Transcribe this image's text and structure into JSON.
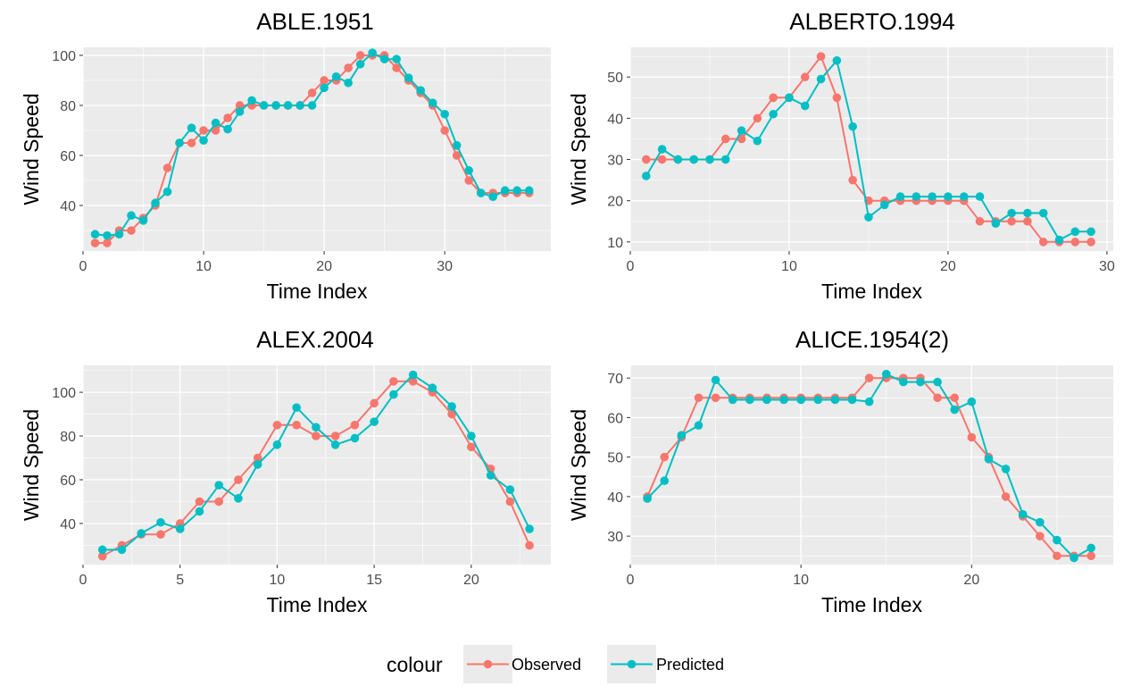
{
  "colors": {
    "observed": "#F8766D",
    "predicted": "#00BFC4",
    "panel": "#EBEBEB",
    "grid": "#FFFFFF",
    "tick_text": "#4D4D4D"
  },
  "legend": {
    "title": "colour",
    "items": [
      {
        "label": "Observed",
        "color": "#F8766D"
      },
      {
        "label": "Predicted",
        "color": "#00BFC4"
      }
    ],
    "placement": "bottom"
  },
  "chart_data": [
    {
      "type": "line",
      "title": "ABLE.1951",
      "xlabel": "Time Index",
      "ylabel": "Wind Speed",
      "xlim": [
        0,
        38.8
      ],
      "ylim": [
        21.8,
        103.2
      ],
      "xticks": [
        0,
        10,
        20,
        30
      ],
      "yticks": [
        40,
        60,
        80,
        100
      ],
      "xminor": [
        5,
        15,
        25,
        35
      ],
      "yminor": [
        30,
        50,
        70,
        90
      ],
      "grid": true,
      "series": [
        {
          "name": "Observed",
          "x": [
            1,
            2,
            3,
            4,
            5,
            6,
            7,
            8,
            9,
            10,
            11,
            12,
            13,
            14,
            15,
            16,
            17,
            18,
            19,
            20,
            21,
            22,
            23,
            24,
            25,
            26,
            27,
            28,
            29,
            30,
            31,
            32,
            33,
            34,
            35,
            36,
            37
          ],
          "values": [
            25,
            25,
            30,
            30,
            35,
            40,
            55,
            65,
            65,
            70,
            70,
            75,
            80,
            80,
            80,
            80,
            80,
            80,
            85,
            90,
            90,
            95,
            100,
            100,
            100,
            95,
            90,
            85,
            80,
            70,
            60,
            50,
            45,
            45,
            45,
            45,
            45
          ]
        },
        {
          "name": "Predicted",
          "x": [
            1,
            2,
            3,
            4,
            5,
            6,
            7,
            8,
            9,
            10,
            11,
            12,
            13,
            14,
            15,
            16,
            17,
            18,
            19,
            20,
            21,
            22,
            23,
            24,
            25,
            26,
            27,
            28,
            29,
            30,
            31,
            32,
            33,
            34,
            35,
            36,
            37
          ],
          "values": [
            28.5,
            28,
            28.5,
            36,
            34,
            41,
            45.5,
            65,
            71,
            66,
            73,
            70.5,
            77.5,
            82,
            80,
            80,
            80,
            80,
            80,
            87,
            91.5,
            89,
            96.5,
            101,
            98.5,
            98.5,
            91,
            86,
            81,
            76.5,
            64,
            54,
            45,
            43.5,
            46,
            46,
            46
          ]
        }
      ]
    },
    {
      "type": "line",
      "title": "ALBERTO.1994",
      "xlabel": "Time Index",
      "ylabel": "Wind Speed",
      "xlim": [
        0,
        30.4
      ],
      "ylim": [
        7.8,
        57.2
      ],
      "xticks": [
        0,
        10,
        20,
        30
      ],
      "yticks": [
        10,
        20,
        30,
        40,
        50
      ],
      "xminor": [
        5,
        15,
        25
      ],
      "yminor": [
        15,
        25,
        35,
        45,
        55
      ],
      "grid": true,
      "series": [
        {
          "name": "Observed",
          "x": [
            1,
            2,
            3,
            4,
            5,
            6,
            7,
            8,
            9,
            10,
            11,
            12,
            13,
            14,
            15,
            16,
            17,
            18,
            19,
            20,
            21,
            22,
            23,
            24,
            25,
            26,
            27,
            28,
            29
          ],
          "values": [
            30,
            30,
            30,
            30,
            30,
            35,
            35,
            40,
            45,
            45,
            50,
            55,
            45,
            25,
            20,
            20,
            20,
            20,
            20,
            20,
            20,
            15,
            15,
            15,
            15,
            10,
            10,
            10,
            10
          ]
        },
        {
          "name": "Predicted",
          "x": [
            1,
            2,
            3,
            4,
            5,
            6,
            7,
            8,
            9,
            10,
            11,
            12,
            13,
            14,
            15,
            16,
            17,
            18,
            19,
            20,
            21,
            22,
            23,
            24,
            25,
            26,
            27,
            28,
            29
          ],
          "values": [
            26,
            32.5,
            30,
            30,
            30,
            30,
            37,
            34.5,
            41,
            45,
            43,
            49.5,
            54,
            38,
            16,
            19,
            21,
            21,
            21,
            21,
            21,
            21,
            14.5,
            17,
            17,
            17,
            10.5,
            12.5,
            12.5
          ]
        }
      ]
    },
    {
      "type": "line",
      "title": "ALEX.2004",
      "xlabel": "Time Index",
      "ylabel": "Wind Speed",
      "xlim": [
        0,
        24.1
      ],
      "ylim": [
        21.2,
        112.3
      ],
      "xticks": [
        0,
        5,
        10,
        15,
        20
      ],
      "yticks": [
        40,
        60,
        80,
        100
      ],
      "xminor": [
        2.5,
        7.5,
        12.5,
        17.5,
        22.5
      ],
      "yminor": [
        30,
        50,
        70,
        90,
        110
      ],
      "grid": true,
      "series": [
        {
          "name": "Observed",
          "x": [
            1,
            2,
            3,
            4,
            5,
            6,
            7,
            8,
            9,
            10,
            11,
            12,
            13,
            14,
            15,
            16,
            17,
            18,
            19,
            20,
            21,
            22,
            23
          ],
          "values": [
            25,
            30,
            35,
            35,
            40,
            50,
            50,
            60,
            70,
            85,
            85,
            80,
            80,
            85,
            95,
            105,
            105,
            100,
            90,
            75,
            65,
            50,
            30
          ]
        },
        {
          "name": "Predicted",
          "x": [
            1,
            2,
            3,
            4,
            5,
            6,
            7,
            8,
            9,
            10,
            11,
            12,
            13,
            14,
            15,
            16,
            17,
            18,
            19,
            20,
            21,
            22,
            23
          ],
          "values": [
            28,
            28,
            35.5,
            40.5,
            37.5,
            45.5,
            57.5,
            51.5,
            67,
            76,
            93,
            84,
            76,
            79,
            86.5,
            99,
            108,
            102,
            93.5,
            80,
            62,
            55.5,
            37.5
          ]
        }
      ]
    },
    {
      "type": "line",
      "title": "ALICE.1954(2)",
      "xlabel": "Time Index",
      "ylabel": "Wind Speed",
      "xlim": [
        0,
        28.3
      ],
      "ylim": [
        22.8,
        73.2
      ],
      "xticks": [
        0,
        10,
        20
      ],
      "yticks": [
        30,
        40,
        50,
        60,
        70
      ],
      "xminor": [
        5,
        15,
        25
      ],
      "yminor": [
        25,
        35,
        45,
        55,
        65
      ],
      "grid": true,
      "series": [
        {
          "name": "Observed",
          "x": [
            1,
            2,
            3,
            4,
            5,
            6,
            7,
            8,
            9,
            10,
            11,
            12,
            13,
            14,
            15,
            16,
            17,
            18,
            19,
            20,
            21,
            22,
            23,
            24,
            25,
            26,
            27
          ],
          "values": [
            40,
            50,
            55,
            65,
            65,
            65,
            65,
            65,
            65,
            65,
            65,
            65,
            65,
            70,
            70,
            70,
            70,
            65,
            65,
            55,
            50,
            40,
            35,
            30,
            25,
            25,
            25
          ]
        },
        {
          "name": "Predicted",
          "x": [
            1,
            2,
            3,
            4,
            5,
            6,
            7,
            8,
            9,
            10,
            11,
            12,
            13,
            14,
            15,
            16,
            17,
            18,
            19,
            20,
            21,
            22,
            23,
            24,
            25,
            26,
            27
          ],
          "values": [
            39.5,
            44,
            55.5,
            58,
            69.5,
            64.5,
            64.5,
            64.5,
            64.5,
            64.5,
            64.5,
            64.5,
            64.5,
            64,
            71,
            69,
            69,
            69,
            62,
            64,
            49.5,
            47,
            35.5,
            33.5,
            29,
            24.5,
            27
          ]
        }
      ]
    }
  ]
}
